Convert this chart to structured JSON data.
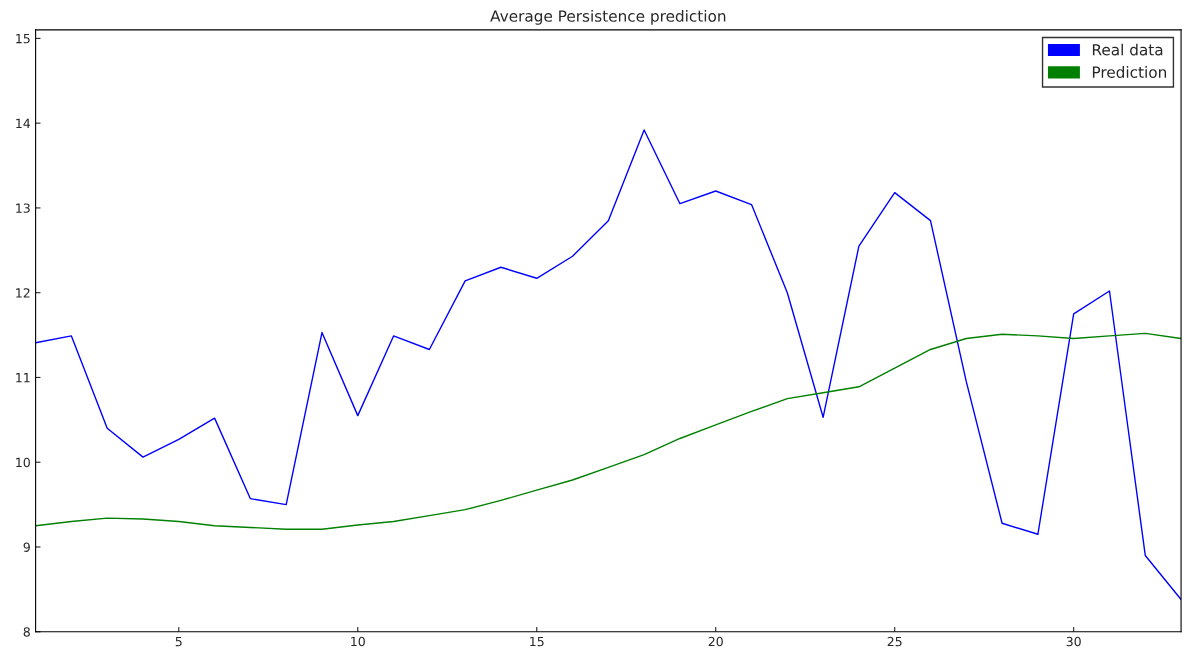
{
  "chart_data": {
    "type": "line",
    "title": "Average Persistence prediction",
    "x": [
      1,
      2,
      3,
      4,
      5,
      6,
      7,
      8,
      9,
      10,
      11,
      12,
      13,
      14,
      15,
      16,
      17,
      18,
      19,
      20,
      21,
      22,
      23,
      24,
      25,
      26,
      27,
      28,
      29,
      30,
      31,
      32,
      33
    ],
    "series": [
      {
        "name": "Real data",
        "color": "#0000ff",
        "values": [
          11.41,
          11.49,
          10.4,
          10.06,
          10.27,
          10.52,
          9.57,
          9.5,
          11.53,
          10.55,
          11.49,
          11.33,
          12.14,
          12.3,
          12.17,
          12.43,
          12.85,
          13.92,
          13.05,
          13.2,
          13.04,
          12.0,
          10.53,
          12.55,
          13.18,
          12.85,
          10.95,
          9.28,
          9.15,
          11.75,
          12.02,
          8.9,
          8.38
        ]
      },
      {
        "name": "Prediction",
        "color": "#008000",
        "values": [
          9.25,
          9.3,
          9.34,
          9.33,
          9.3,
          9.25,
          9.23,
          9.21,
          9.21,
          9.26,
          9.3,
          9.37,
          9.44,
          9.55,
          9.67,
          9.79,
          9.94,
          10.09,
          10.28,
          10.44,
          10.6,
          10.75,
          10.82,
          10.89,
          11.11,
          11.33,
          11.46,
          11.51,
          11.49,
          11.46,
          11.49,
          11.52,
          11.46
        ]
      }
    ],
    "xlim": [
      1,
      33
    ],
    "xticks": [
      5,
      10,
      15,
      20,
      25,
      30
    ],
    "ylim": [
      8,
      15.1
    ],
    "yticks": [
      8,
      9,
      10,
      11,
      12,
      13,
      14,
      15
    ],
    "grid": false,
    "legend": "top right"
  }
}
